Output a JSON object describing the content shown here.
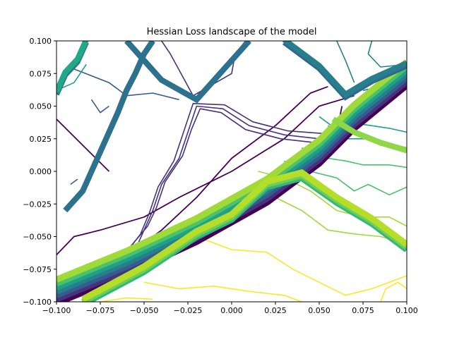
{
  "chart_data": {
    "type": "contour",
    "title": "Hessian Loss landscape of the model",
    "xlabel": "",
    "ylabel": "",
    "xlim": [
      -0.1,
      0.1
    ],
    "ylim": [
      -0.1,
      0.1
    ],
    "grid": false,
    "colormap": "viridis",
    "x_ticks": [
      -0.1,
      -0.075,
      -0.05,
      -0.025,
      0.0,
      0.025,
      0.05,
      0.075,
      0.1
    ],
    "x_tick_labels": [
      "−0.100",
      "−0.075",
      "−0.050",
      "−0.025",
      "0.000",
      "0.025",
      "0.050",
      "0.075",
      "0.100"
    ],
    "y_ticks": [
      -0.1,
      -0.075,
      -0.05,
      -0.025,
      0.0,
      0.025,
      0.05,
      0.075,
      0.1
    ],
    "y_tick_labels": [
      "−0.100",
      "−0.075",
      "−0.050",
      "−0.025",
      "0.000",
      "0.025",
      "0.050",
      "0.075",
      "0.100"
    ],
    "levels": [
      {
        "name": "level-1",
        "color": "#440154",
        "width": 1.8,
        "polylines": [
          [
            [
              -0.1,
              -0.088
            ],
            [
              -0.05,
              -0.063
            ],
            [
              -0.03,
              -0.052
            ],
            [
              0.0,
              -0.03
            ],
            [
              0.04,
              0.0
            ],
            [
              0.06,
              0.03
            ],
            [
              0.063,
              0.05
            ]
          ],
          [
            [
              -0.1,
              -0.064
            ],
            [
              -0.09,
              -0.05
            ],
            [
              -0.075,
              -0.045
            ],
            [
              -0.05,
              -0.035
            ],
            [
              -0.03,
              -0.02
            ],
            [
              0.0,
              0.0
            ],
            [
              0.03,
              0.025
            ],
            [
              0.05,
              0.05
            ],
            [
              0.07,
              0.058
            ]
          ],
          [
            [
              -0.075,
              -0.082
            ],
            [
              -0.07,
              -0.07
            ],
            [
              -0.055,
              -0.06
            ],
            [
              -0.04,
              -0.045
            ],
            [
              -0.02,
              -0.02
            ],
            [
              0.0,
              0.01
            ],
            [
              0.025,
              0.035
            ],
            [
              0.045,
              0.06
            ],
            [
              0.055,
              0.065
            ]
          ],
          [
            [
              -0.1,
              0.04
            ],
            [
              -0.085,
              0.02
            ],
            [
              -0.07,
              0.0
            ]
          ]
        ]
      },
      {
        "name": "level-2",
        "color": "#46327e",
        "width": 1.6,
        "polylines": [
          [
            [
              -0.055,
              -0.06
            ],
            [
              -0.05,
              -0.045
            ],
            [
              -0.045,
              -0.03
            ],
            [
              -0.04,
              -0.01
            ],
            [
              -0.03,
              0.01
            ],
            [
              -0.025,
              0.03
            ],
            [
              -0.02,
              0.05
            ],
            [
              -0.005,
              0.048
            ],
            [
              0.01,
              0.035
            ],
            [
              0.03,
              0.028
            ],
            [
              0.05,
              0.025
            ],
            [
              0.065,
              0.045
            ]
          ],
          [
            [
              -0.06,
              -0.062
            ],
            [
              -0.052,
              -0.048
            ],
            [
              -0.047,
              -0.032
            ],
            [
              -0.042,
              -0.012
            ],
            [
              -0.033,
              0.008
            ],
            [
              -0.028,
              0.028
            ],
            [
              -0.022,
              0.052
            ],
            [
              -0.004,
              0.051
            ],
            [
              0.012,
              0.038
            ],
            [
              0.032,
              0.031
            ],
            [
              0.052,
              0.029
            ],
            [
              0.068,
              0.048
            ]
          ],
          [
            [
              -0.058,
              -0.058
            ],
            [
              -0.048,
              -0.042
            ],
            [
              -0.043,
              -0.028
            ],
            [
              -0.038,
              -0.008
            ],
            [
              -0.028,
              0.012
            ],
            [
              -0.023,
              0.032
            ],
            [
              -0.018,
              0.048
            ],
            [
              -0.006,
              0.045
            ],
            [
              0.008,
              0.032
            ],
            [
              0.028,
              0.025
            ],
            [
              0.048,
              0.022
            ],
            [
              0.062,
              0.042
            ]
          ],
          [
            [
              -0.04,
              0.1
            ],
            [
              -0.035,
              0.09
            ],
            [
              -0.022,
              0.058
            ],
            [
              0.0,
              0.075
            ],
            [
              0.002,
              0.09
            ],
            [
              0.008,
              0.1
            ]
          ]
        ]
      },
      {
        "name": "level-3",
        "color": "#365c8d",
        "width": 1.6,
        "polylines": [
          [
            [
              -0.093,
              0.08
            ],
            [
              -0.07,
              0.068
            ],
            [
              -0.06,
              0.058
            ],
            [
              -0.045,
              0.06
            ],
            [
              -0.03,
              0.055
            ]
          ],
          [
            [
              -0.08,
              0.055
            ],
            [
              -0.075,
              0.045
            ],
            [
              -0.07,
              0.05
            ]
          ],
          [
            [
              -0.092,
              -0.01
            ],
            [
              -0.088,
              -0.006
            ]
          ]
        ]
      },
      {
        "name": "level-4",
        "color": "#277f8e",
        "width": 1.6,
        "polylines": [
          [
            [
              0.08,
              0.1
            ],
            [
              0.078,
              0.09
            ],
            [
              0.085,
              0.08
            ],
            [
              0.1,
              0.082
            ]
          ],
          [
            [
              0.075,
              0.062
            ],
            [
              0.085,
              0.065
            ],
            [
              0.1,
              0.078
            ]
          ],
          [
            [
              0.06,
              0.1
            ],
            [
              0.065,
              0.085
            ],
            [
              0.07,
              0.068
            ]
          ]
        ]
      },
      {
        "name": "level-5",
        "color": "#1fa187",
        "width": 1.6,
        "polylines": [
          [
            [
              0.05,
              0.042
            ],
            [
              0.06,
              0.032
            ],
            [
              0.075,
              0.036
            ],
            [
              0.09,
              0.033
            ],
            [
              0.1,
              0.03
            ]
          ],
          [
            [
              0.055,
              0.035
            ],
            [
              0.065,
              0.025
            ],
            [
              0.08,
              0.025
            ],
            [
              0.1,
              0.018
            ]
          ],
          [
            [
              -0.1,
              0.062
            ],
            [
              -0.09,
              0.068
            ],
            [
              -0.083,
              0.082
            ]
          ]
        ]
      },
      {
        "name": "level-6",
        "color": "#4ac16d",
        "width": 1.6,
        "polylines": [
          [
            [
              0.04,
              0.018
            ],
            [
              0.055,
              0.01
            ],
            [
              0.065,
              0.008
            ],
            [
              0.075,
              0.005
            ],
            [
              0.09,
              0.005
            ],
            [
              0.1,
              0.003
            ]
          ],
          [
            [
              0.03,
              0.008
            ],
            [
              0.045,
              0.0
            ],
            [
              0.06,
              -0.005
            ],
            [
              0.07,
              -0.015
            ],
            [
              0.078,
              -0.01
            ],
            [
              0.09,
              -0.018
            ],
            [
              0.1,
              -0.012
            ]
          ]
        ]
      },
      {
        "name": "level-7",
        "color": "#a0da39",
        "width": 1.6,
        "polylines": [
          [
            [
              0.015,
              0.0
            ],
            [
              0.03,
              -0.005
            ],
            [
              0.045,
              -0.015
            ],
            [
              0.06,
              -0.03
            ],
            [
              0.075,
              -0.035
            ],
            [
              0.09,
              -0.035
            ],
            [
              0.1,
              -0.042
            ]
          ],
          [
            [
              0.01,
              -0.012
            ],
            [
              0.025,
              -0.02
            ],
            [
              0.04,
              -0.03
            ],
            [
              0.055,
              -0.045
            ],
            [
              0.07,
              -0.048
            ],
            [
              0.085,
              -0.05
            ],
            [
              0.1,
              -0.055
            ]
          ]
        ]
      },
      {
        "name": "level-8",
        "color": "#fde725",
        "width": 1.6,
        "polylines": [
          [
            [
              -0.02,
              -0.05
            ],
            [
              0.0,
              -0.06
            ],
            [
              0.02,
              -0.062
            ],
            [
              0.035,
              -0.075
            ],
            [
              0.05,
              -0.085
            ],
            [
              0.065,
              -0.095
            ],
            [
              0.08,
              -0.09
            ],
            [
              0.1,
              -0.08
            ]
          ],
          [
            [
              -0.05,
              -0.085
            ],
            [
              -0.03,
              -0.09
            ],
            [
              -0.01,
              -0.088
            ],
            [
              0.01,
              -0.092
            ],
            [
              0.03,
              -0.095
            ],
            [
              0.04,
              -0.1
            ]
          ],
          [
            [
              -0.075,
              -0.1
            ],
            [
              -0.06,
              -0.097
            ],
            [
              -0.045,
              -0.098
            ]
          ],
          [
            [
              0.085,
              -0.1
            ],
            [
              0.088,
              -0.09
            ],
            [
              0.095,
              -0.085
            ],
            [
              0.1,
              -0.09
            ]
          ]
        ]
      }
    ],
    "ridges": [
      {
        "name": "ridge-diagonal",
        "width": 9,
        "colors": [
          "#440154",
          "#46327e",
          "#365c8d",
          "#277f8e",
          "#1fa187",
          "#4ac16d",
          "#a0da39"
        ],
        "offset": 0.003,
        "points": [
          [
            -0.1,
            -0.092
          ],
          [
            -0.06,
            -0.07
          ],
          [
            -0.02,
            -0.045
          ],
          [
            0.02,
            -0.015
          ],
          [
            0.05,
            0.015
          ],
          [
            0.07,
            0.042
          ],
          [
            0.1,
            0.075
          ]
        ]
      },
      {
        "name": "ridge-left",
        "width": 8,
        "colors": [
          "#2a788e",
          "#22a884"
        ],
        "offset": 0.002,
        "points": [
          [
            -0.1,
            0.06
          ],
          [
            -0.095,
            0.075
          ],
          [
            -0.088,
            0.085
          ],
          [
            -0.083,
            0.1
          ]
        ]
      },
      {
        "name": "ridge-vertical",
        "width": 8,
        "colors": [
          "#3b528b",
          "#2c728e"
        ],
        "offset": 0.0,
        "points": [
          [
            -0.095,
            -0.03
          ],
          [
            -0.085,
            -0.015
          ],
          [
            -0.08,
            0.0
          ],
          [
            -0.075,
            0.015
          ],
          [
            -0.07,
            0.03
          ],
          [
            -0.065,
            0.045
          ],
          [
            -0.06,
            0.062
          ],
          [
            -0.055,
            0.075
          ],
          [
            -0.05,
            0.09
          ],
          [
            -0.045,
            0.1
          ]
        ]
      },
      {
        "name": "ridge-v-top",
        "width": 8,
        "colors": [
          "#3b528b",
          "#2c728e"
        ],
        "offset": 0.0,
        "points": [
          [
            -0.06,
            0.1
          ],
          [
            -0.04,
            0.07
          ],
          [
            -0.02,
            0.055
          ],
          [
            0.0,
            0.085
          ],
          [
            0.01,
            0.1
          ]
        ]
      },
      {
        "name": "ridge-diag-upper",
        "width": 8,
        "colors": [
          "#31688e",
          "#277f8e"
        ],
        "offset": 0.002,
        "points": [
          [
            0.03,
            0.1
          ],
          [
            0.05,
            0.08
          ],
          [
            0.065,
            0.058
          ],
          [
            0.08,
            0.07
          ],
          [
            0.1,
            0.082
          ]
        ]
      },
      {
        "name": "ridge-diag-lower",
        "width": 9,
        "colors": [
          "#35b779",
          "#6ece58",
          "#b5de2b"
        ],
        "offset": 0.002,
        "points": [
          [
            -0.085,
            -0.1
          ],
          [
            -0.05,
            -0.075
          ],
          [
            -0.02,
            -0.048
          ],
          [
            0.0,
            -0.035
          ],
          [
            0.02,
            -0.01
          ],
          [
            0.04,
            -0.003
          ],
          [
            0.06,
            -0.022
          ],
          [
            0.08,
            -0.038
          ],
          [
            0.1,
            -0.058
          ]
        ]
      },
      {
        "name": "ridge-right-green",
        "width": 8,
        "colors": [
          "#5ec962",
          "#8fd744"
        ],
        "offset": 0.0,
        "points": [
          [
            0.058,
            0.04
          ],
          [
            0.07,
            0.03
          ],
          [
            0.085,
            0.022
          ],
          [
            0.1,
            0.016
          ]
        ]
      }
    ]
  }
}
